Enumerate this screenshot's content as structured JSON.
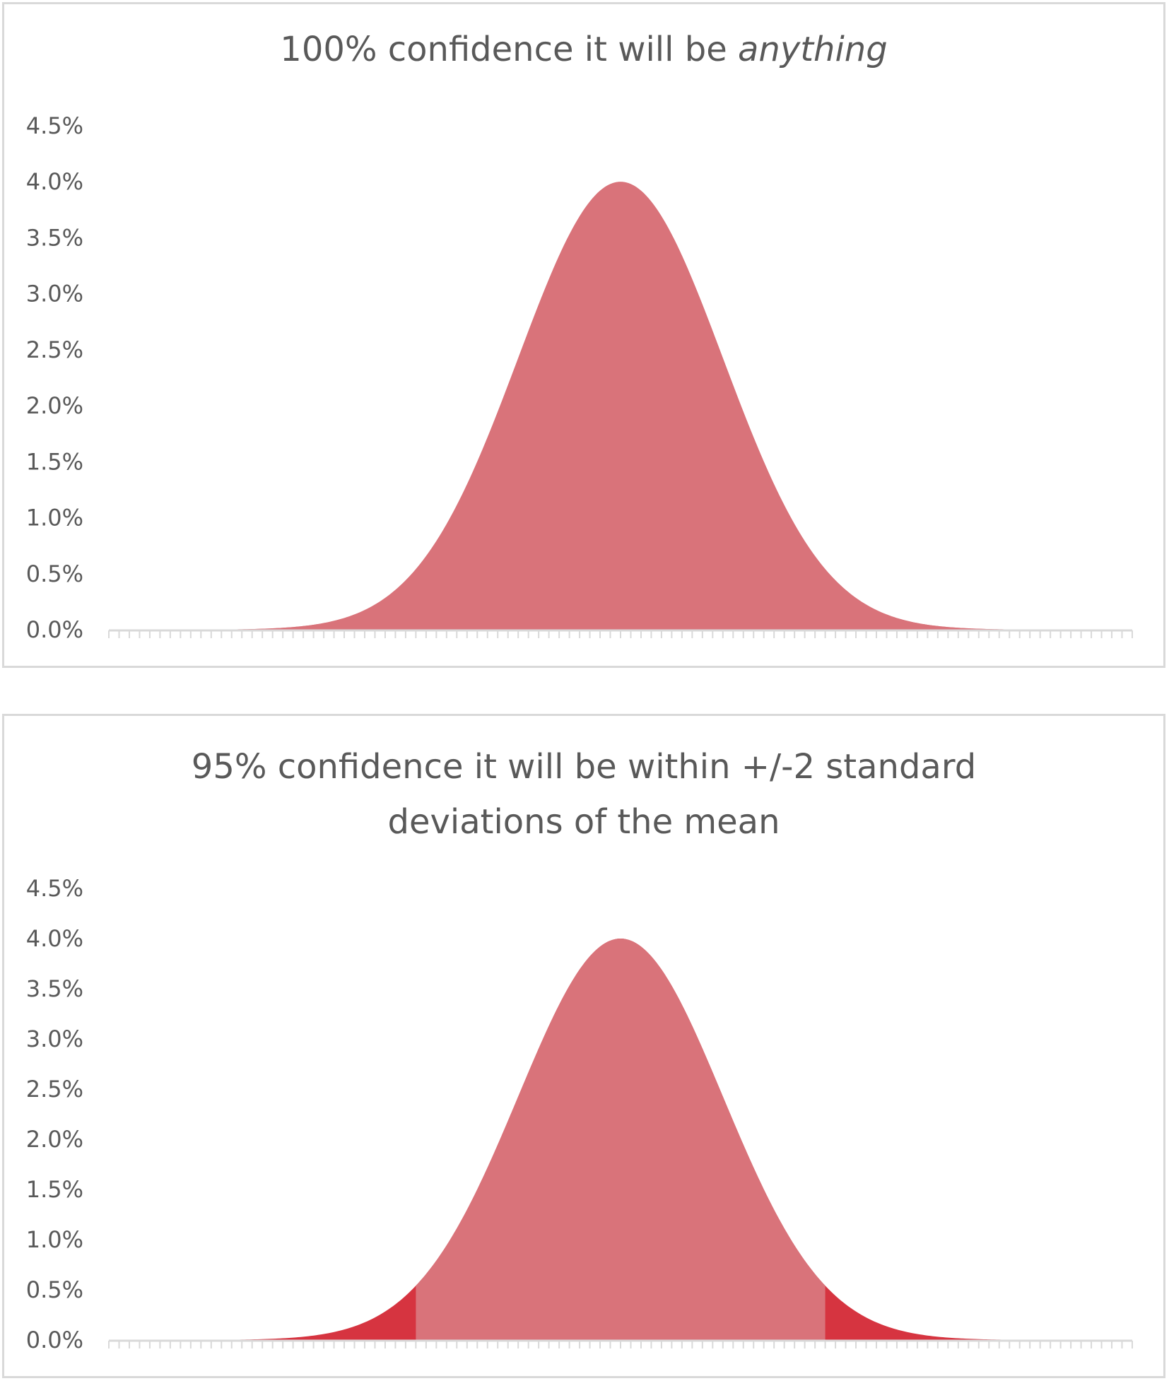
{
  "chart_data": [
    {
      "type": "area",
      "title_parts": [
        {
          "text": "100% confidence it will be ",
          "italic": false
        },
        {
          "text": "anything",
          "italic": true
        }
      ],
      "y_tick_labels": [
        "0.0%",
        "0.5%",
        "1.0%",
        "1.5%",
        "2.0%",
        "2.5%",
        "3.0%",
        "3.5%",
        "4.0%",
        "4.5%"
      ],
      "ylim": [
        0,
        4.5
      ],
      "x_categories": 101,
      "distribution": {
        "shape": "normal",
        "mean_index": 50,
        "sd_indices": 10,
        "peak_percent": 4.0
      },
      "shaded_region": {
        "sd_range": [
          -10,
          10
        ],
        "color": "#d9737a"
      },
      "tail_color": "#d9737a",
      "grid": false,
      "legend": "none"
    },
    {
      "type": "area",
      "title_parts": [
        {
          "text": "95% confidence it will be within +/-2 standard",
          "italic": false
        },
        {
          "text": "deviations of the mean",
          "italic": false
        }
      ],
      "y_tick_labels": [
        "0.0%",
        "0.5%",
        "1.0%",
        "1.5%",
        "2.0%",
        "2.5%",
        "3.0%",
        "3.5%",
        "4.0%",
        "4.5%"
      ],
      "ylim": [
        0,
        4.5
      ],
      "x_categories": 101,
      "distribution": {
        "shape": "normal",
        "mean_index": 50,
        "sd_indices": 10,
        "peak_percent": 4.0
      },
      "shaded_region": {
        "sd_range": [
          -2,
          2
        ],
        "color": "#d9737a"
      },
      "tail_color": "#d63440",
      "grid": false,
      "legend": "none"
    }
  ]
}
